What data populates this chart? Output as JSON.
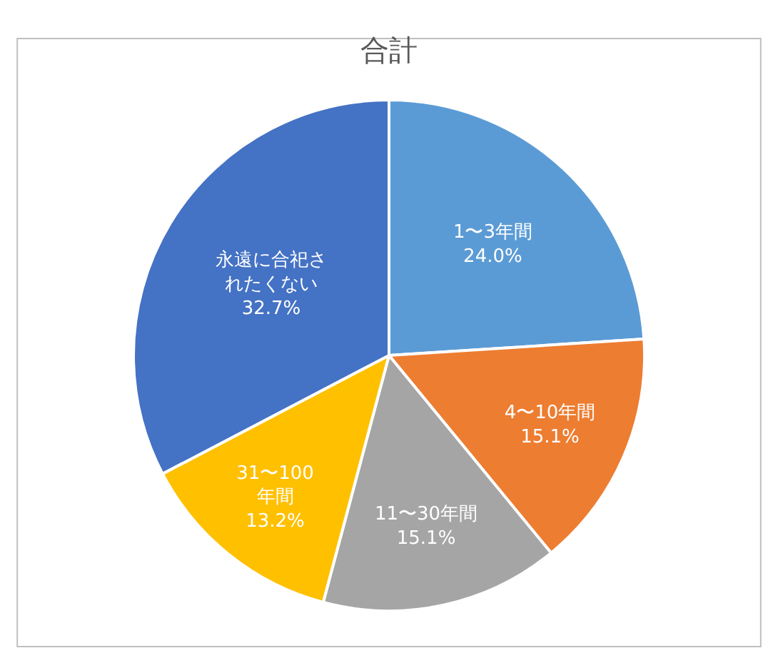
{
  "chart_data": {
    "type": "pie",
    "title": "合計",
    "categories": [
      "1〜3年間",
      "4〜10年間",
      "11〜30年間",
      "31〜100年間",
      "永遠に合祀されたくない"
    ],
    "values": [
      24.0,
      15.1,
      15.1,
      13.2,
      32.7
    ],
    "value_labels": [
      "24.0%",
      "15.1%",
      "15.1%",
      "13.2%",
      "32.7%"
    ],
    "colors": [
      "#5b9bd5",
      "#ed7d31",
      "#a5a5a5",
      "#ffc000",
      "#4472c4"
    ],
    "data_labels": true,
    "legend": false
  }
}
